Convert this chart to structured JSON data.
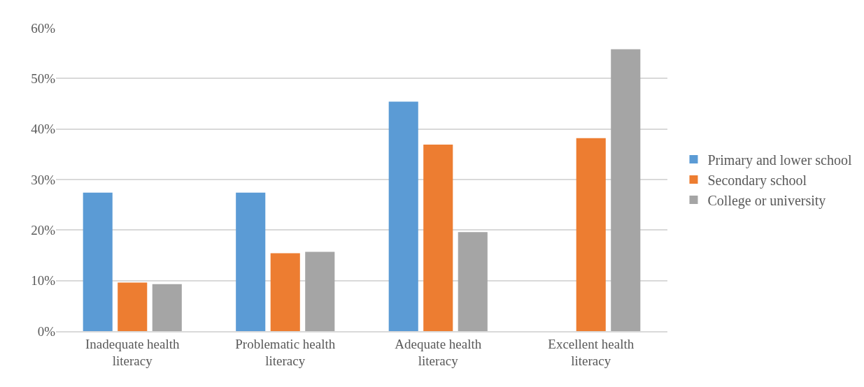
{
  "chart_data": {
    "type": "bar",
    "categories": [
      "Inadequate health literacy",
      "Problematic health literacy",
      "Adequate health literacy",
      "Excellent health literacy"
    ],
    "series": [
      {
        "name": "Primary and lower school",
        "color": "#5b9bd5",
        "values": [
          27.4,
          27.4,
          45.4,
          0
        ]
      },
      {
        "name": "Secondary school",
        "color": "#ed7d31",
        "values": [
          9.6,
          15.4,
          36.9,
          38.2
        ]
      },
      {
        "name": "College or university",
        "color": "#a5a5a5",
        "values": [
          9.3,
          15.7,
          19.6,
          55.8
        ]
      }
    ],
    "ylim": [
      0,
      60
    ],
    "yticks": [
      {
        "value": 0,
        "label": "0%"
      },
      {
        "value": 10,
        "label": "10%"
      },
      {
        "value": 20,
        "label": "20%"
      },
      {
        "value": 30,
        "label": "30%"
      },
      {
        "value": 40,
        "label": "40%"
      },
      {
        "value": 50,
        "label": "50%"
      },
      {
        "value": 60,
        "label": "60%"
      }
    ],
    "grid": "y",
    "legend": "right"
  }
}
